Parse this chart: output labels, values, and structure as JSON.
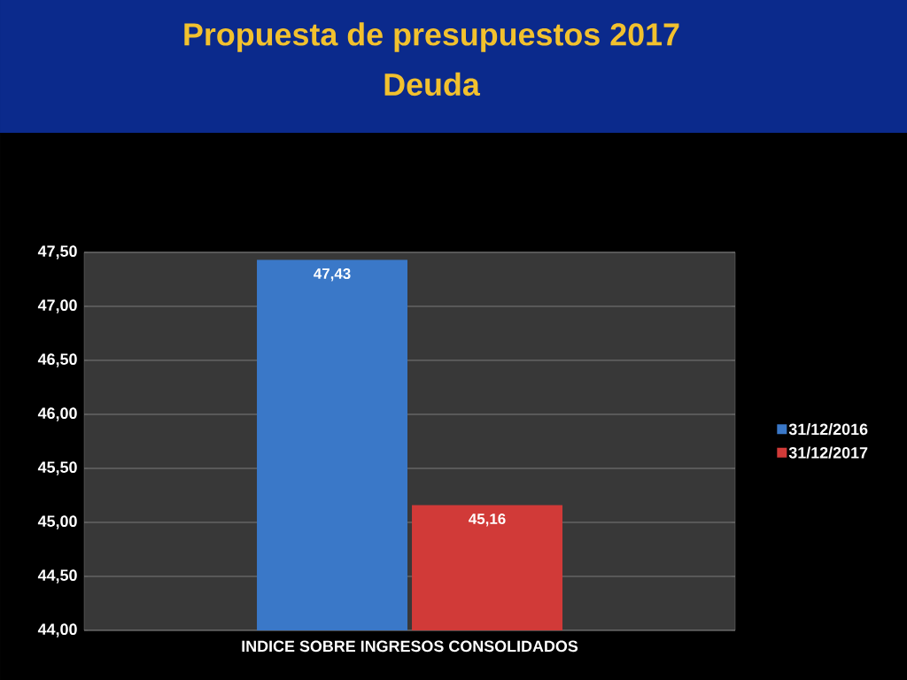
{
  "chart_data": {
    "type": "bar",
    "title": "Propuesta de presupuestos 2017",
    "subtitle": "Deuda",
    "categories": [
      "INDICE SOBRE INGRESOS CONSOLIDADOS"
    ],
    "series": [
      {
        "name": "31/12/2016",
        "color": "#3a78c8",
        "values": [
          47.43
        ],
        "value_labels": [
          "47,43"
        ]
      },
      {
        "name": "31/12/2017",
        "color": "#d13a38",
        "values": [
          45.16
        ],
        "value_labels": [
          "45,16"
        ]
      }
    ],
    "ylim": [
      44,
      47.5
    ],
    "yticks": [
      {
        "value": 44,
        "label": "44,00"
      },
      {
        "value": 44.5,
        "label": "44,50"
      },
      {
        "value": 45,
        "label": "45,00"
      },
      {
        "value": 45.5,
        "label": "45,50"
      },
      {
        "value": 46,
        "label": "46,00"
      },
      {
        "value": 46.5,
        "label": "46,50"
      },
      {
        "value": 47,
        "label": "47,00"
      },
      {
        "value": 47.5,
        "label": "47,50"
      }
    ],
    "grid": "y",
    "legend": "right"
  }
}
